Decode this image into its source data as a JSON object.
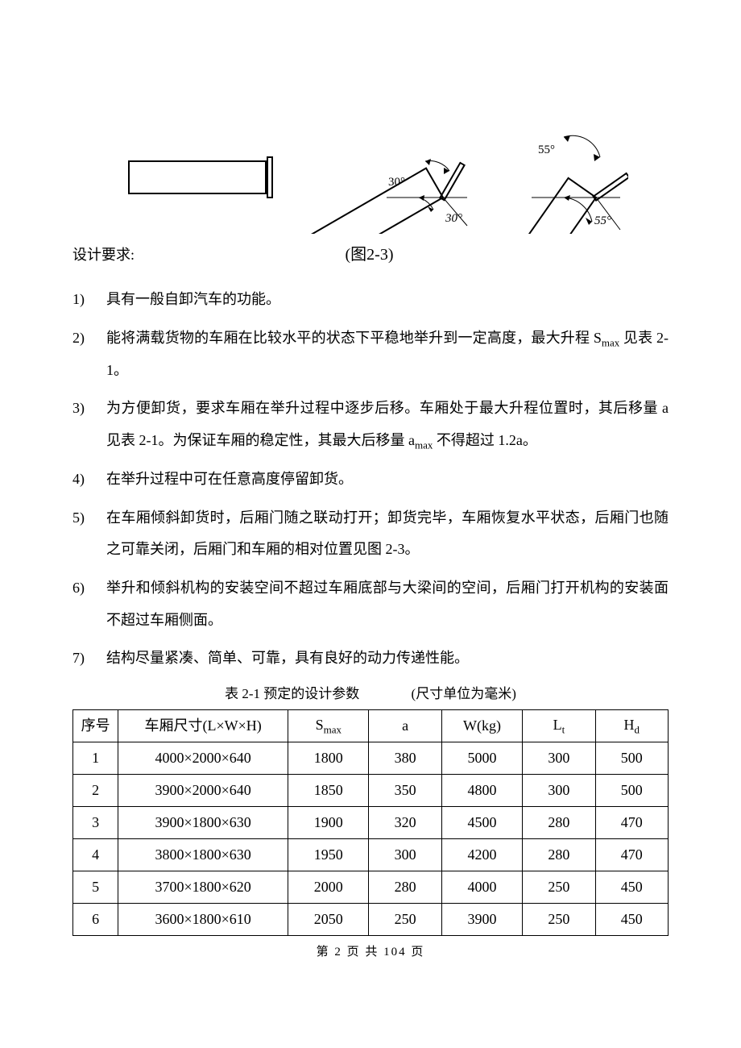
{
  "diagram": {
    "angles": {
      "mid": "30°",
      "right": "55°"
    },
    "stroke": "#000000",
    "stroke_width": 2
  },
  "figure_label": "(图2-3)",
  "design_req_label": "设计要求:",
  "requirements": [
    "具有一般自卸汽车的功能。",
    "能将满载货物的车厢在比较水平的状态下平稳地举升到一定高度，最大升程 S<sub>max</sub> 见表 2-1。",
    "为方便卸货，要求车厢在举升过程中逐步后移。车厢处于最大升程位置时，其后移量 a 见表 2-1。为保证车厢的稳定性，其最大后移量 a<sub>max</sub> 不得超过 1.2a。",
    "在举升过程中可在任意高度停留卸货。",
    "在车厢倾斜卸货时，后厢门随之联动打开；卸货完毕，车厢恢复水平状态，后厢门也随之可靠关闭，后厢门和车厢的相对位置见图 2-3。",
    "举升和倾斜机构的安装空间不超过车厢底部与大梁间的空间，后厢门打开机构的安装面不超过车厢侧面。",
    "结构尽量紧凑、简单、可靠，具有良好的动力传递性能。"
  ],
  "table": {
    "caption_main": "表 2-1  预定的设计参数",
    "caption_unit": "(尺寸单位为毫米)",
    "headers": [
      "序号",
      "车厢尺寸(L×W×H)",
      "S<sub>max</sub>",
      "a",
      "W(kg)",
      "L<sub>t</sub>",
      "H<sub>d</sub>"
    ],
    "rows": [
      [
        "1",
        "4000×2000×640",
        "1800",
        "380",
        "5000",
        "300",
        "500"
      ],
      [
        "2",
        "3900×2000×640",
        "1850",
        "350",
        "4800",
        "300",
        "500"
      ],
      [
        "3",
        "3900×1800×630",
        "1900",
        "320",
        "4500",
        "280",
        "470"
      ],
      [
        "4",
        "3800×1800×630",
        "1950",
        "300",
        "4200",
        "280",
        "470"
      ],
      [
        "5",
        "3700×1800×620",
        "2000",
        "280",
        "4000",
        "250",
        "450"
      ],
      [
        "6",
        "3600×1800×610",
        "2050",
        "250",
        "3900",
        "250",
        "450"
      ]
    ]
  },
  "footer": "第 2 页 共 104 页"
}
